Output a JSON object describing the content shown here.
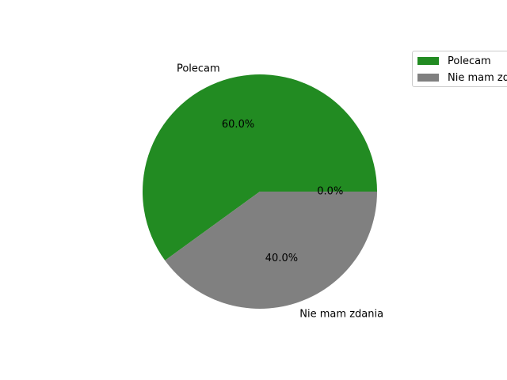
{
  "chart_data": {
    "type": "pie",
    "title": "",
    "slices": [
      {
        "label": "Polecam",
        "value": 60.0,
        "pct_label": "60.0%",
        "color": "#228b22"
      },
      {
        "label": "Nie mam zdania",
        "value": 40.0,
        "pct_label": "40.0%",
        "color": "#808080"
      },
      {
        "label": "",
        "value": 0.0,
        "pct_label": "0.0%",
        "color": "#ff0000"
      }
    ],
    "legend": {
      "placement": "upper-right, outside plot",
      "entries": [
        {
          "label": "Polecam",
          "color": "#228b22"
        },
        {
          "label": "Nie mam zdania",
          "color": "#808080"
        }
      ]
    }
  }
}
